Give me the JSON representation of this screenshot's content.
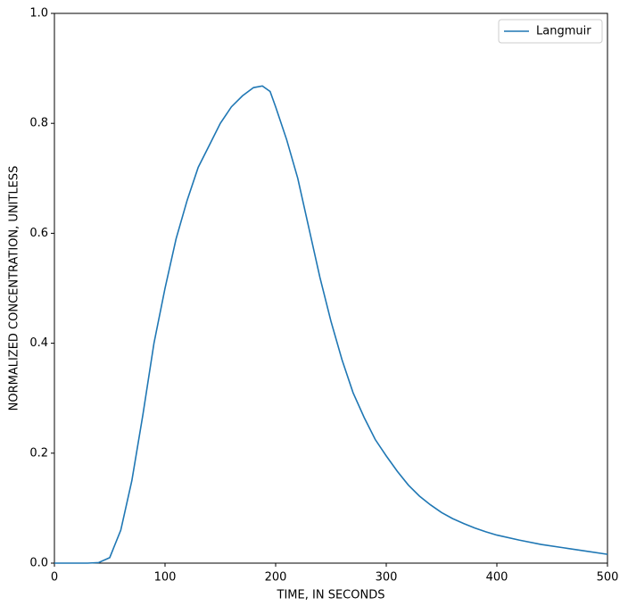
{
  "chart_data": {
    "type": "line",
    "x_label": "TIME, IN SECONDS",
    "y_label": "NORMALIZED CONCENTRATION, UNITLESS",
    "x": [
      0,
      10,
      20,
      30,
      40,
      50,
      60,
      70,
      80,
      90,
      100,
      110,
      120,
      130,
      140,
      150,
      160,
      170,
      180,
      188,
      195,
      200,
      210,
      220,
      230,
      240,
      250,
      260,
      270,
      280,
      290,
      300,
      310,
      320,
      330,
      340,
      350,
      360,
      370,
      380,
      390,
      400,
      420,
      440,
      460,
      480,
      500
    ],
    "series": [
      {
        "name": "Langmuir",
        "color": "#1f77b4",
        "values": [
          0,
          0,
          0,
          0,
          0.001,
          0.01,
          0.06,
          0.15,
          0.27,
          0.4,
          0.5,
          0.59,
          0.66,
          0.72,
          0.76,
          0.8,
          0.83,
          0.85,
          0.865,
          0.868,
          0.858,
          0.83,
          0.77,
          0.7,
          0.61,
          0.52,
          0.44,
          0.37,
          0.31,
          0.265,
          0.225,
          0.195,
          0.167,
          0.142,
          0.122,
          0.106,
          0.092,
          0.081,
          0.072,
          0.064,
          0.057,
          0.051,
          0.042,
          0.034,
          0.028,
          0.022,
          0.016
        ]
      }
    ],
    "xlim": [
      0,
      500
    ],
    "xticks": [
      0,
      100,
      200,
      300,
      400,
      500
    ],
    "ylim": [
      0,
      1
    ],
    "yticks": [
      {
        "value": 0,
        "label": "0.0"
      },
      0.2,
      0.4,
      0.6,
      0.8,
      {
        "value": 1,
        "label": "1.0"
      }
    ],
    "grid": false,
    "legend": "upper right"
  }
}
